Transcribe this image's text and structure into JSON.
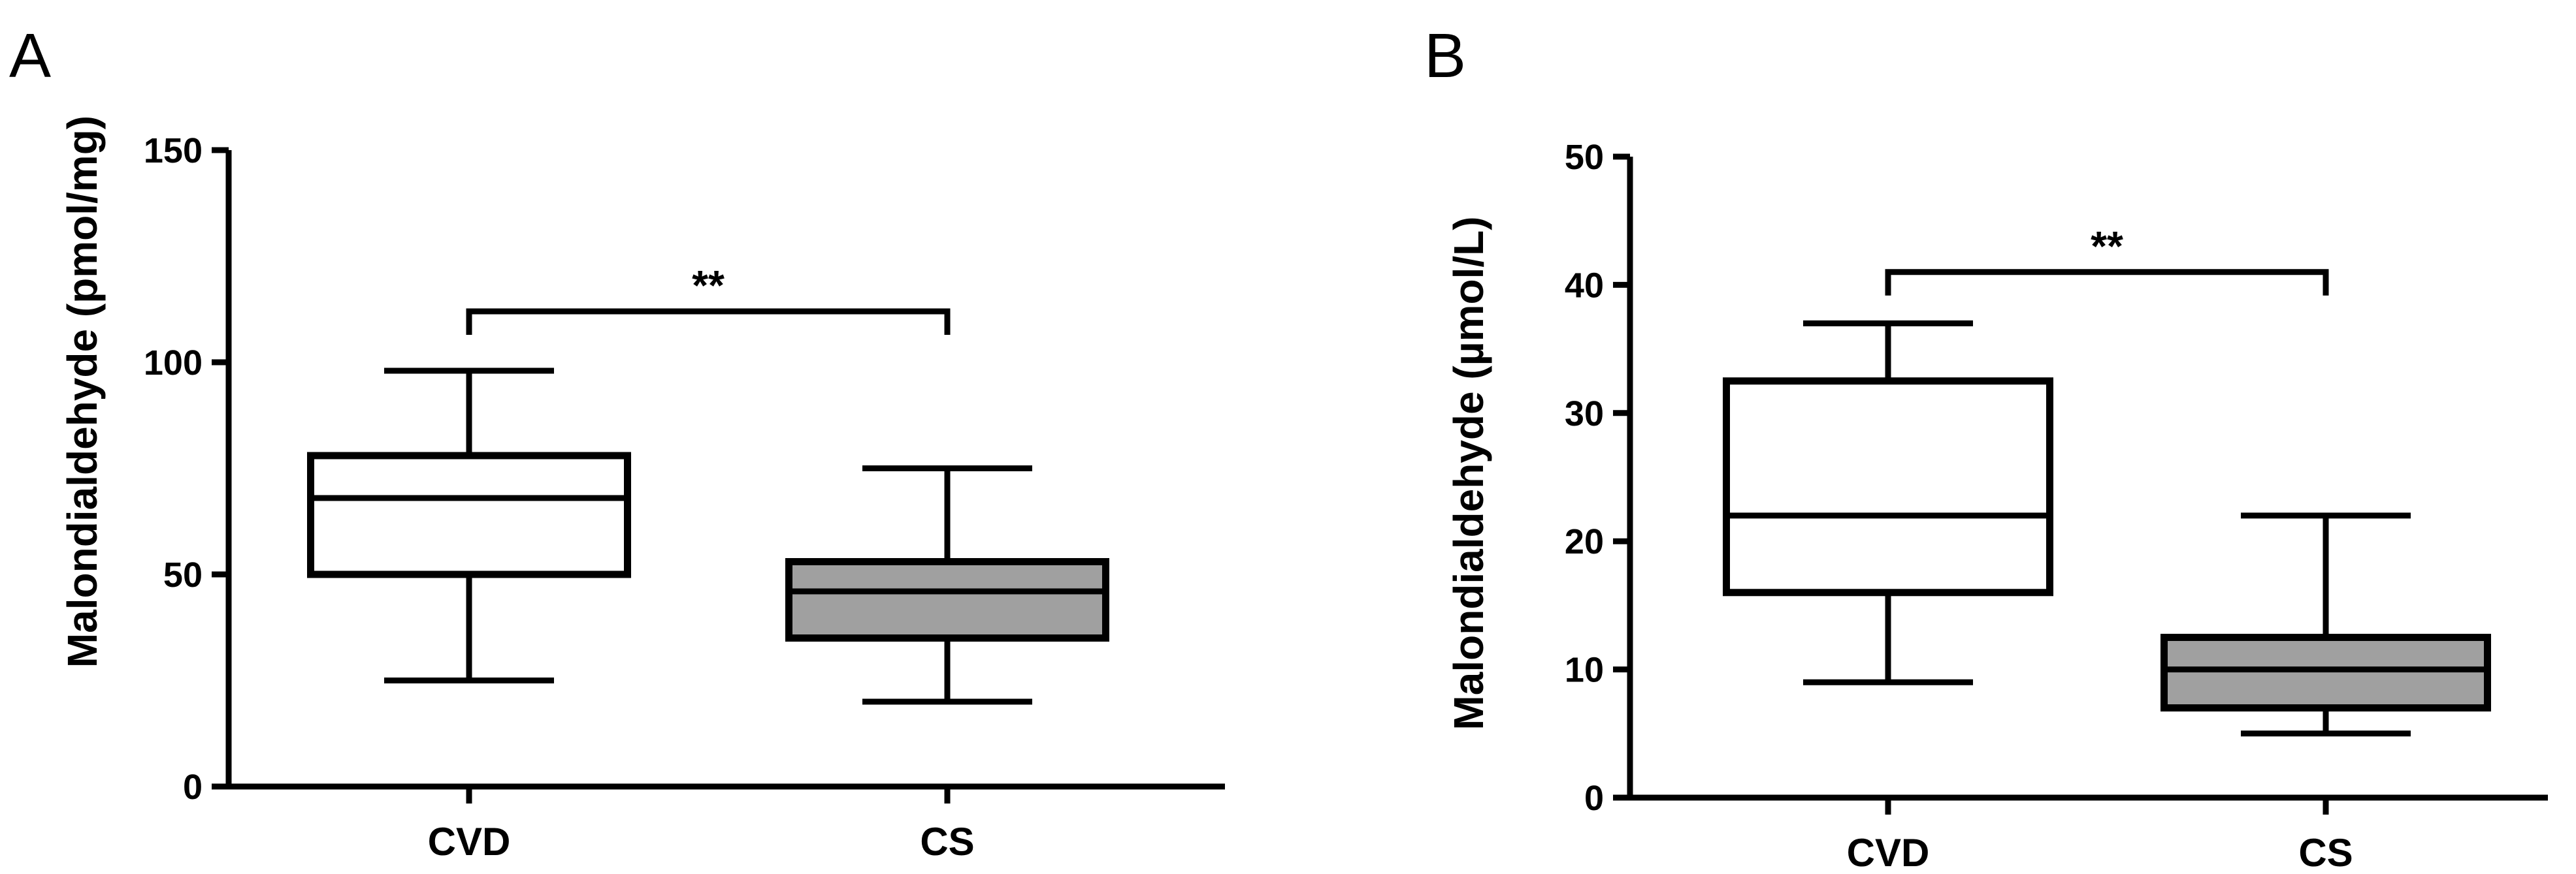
{
  "chart_data": [
    {
      "panel": "A",
      "type": "box",
      "ylabel": "Malondialdehyde (pmol/mg)",
      "ylim": [
        0,
        150
      ],
      "yticks": [
        "0",
        "50",
        "100",
        "150"
      ],
      "categories": [
        "CVD",
        "CS"
      ],
      "boxes": [
        {
          "category": "CVD",
          "min": 25,
          "q1": 50,
          "median": 68,
          "q3": 78,
          "max": 98,
          "color": "#ffffff"
        },
        {
          "category": "CS",
          "min": 20,
          "q1": 35,
          "median": 46,
          "q3": 53,
          "max": 75,
          "color": "#a0a0a0"
        }
      ],
      "significance": {
        "label": "**",
        "between": [
          "CVD",
          "CS"
        ],
        "y": 112
      }
    },
    {
      "panel": "B",
      "type": "box",
      "ylabel": "Malondialdehyde (µmol/L)",
      "ylim": [
        0,
        50
      ],
      "yticks": [
        "0",
        "10",
        "20",
        "30",
        "40",
        "50"
      ],
      "categories": [
        "CVD",
        "CS"
      ],
      "boxes": [
        {
          "category": "CVD",
          "min": 9,
          "q1": 16,
          "median": 22,
          "q3": 32.5,
          "max": 37,
          "color": "#ffffff"
        },
        {
          "category": "CS",
          "min": 5,
          "q1": 7,
          "median": 10,
          "q3": 12.5,
          "max": 22,
          "color": "#a0a0a0"
        }
      ],
      "significance": {
        "label": "**",
        "between": [
          "CVD",
          "CS"
        ],
        "y": 41
      }
    }
  ]
}
